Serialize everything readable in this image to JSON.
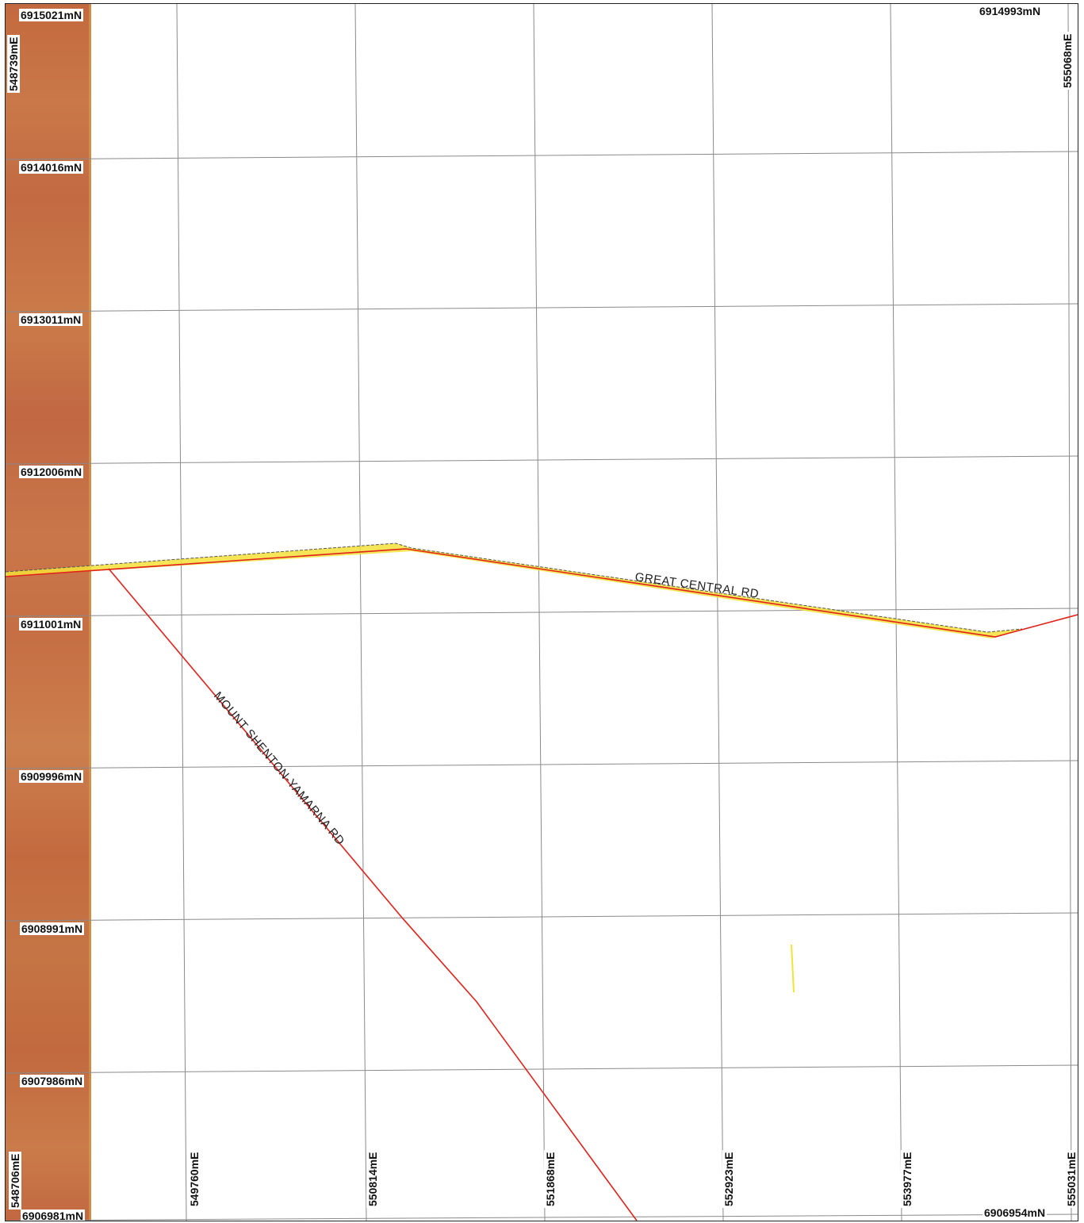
{
  "map": {
    "northing_labels": [
      "6915021mN",
      "6914016mN",
      "6913011mN",
      "6912006mN",
      "6911001mN",
      "6909996mN",
      "6908991mN",
      "6907986mN",
      "6906981mN"
    ],
    "easting_labels_bottom": [
      "548706mE",
      "549760mE",
      "550814mE",
      "551868mE",
      "552923mE",
      "553977mE",
      "555031mE"
    ],
    "corner_labels": {
      "top_left_easting": "548739mE",
      "top_right_northing": "6914993mN",
      "top_right_easting": "555068mE",
      "bottom_right_northing": "6906954mN"
    },
    "roads": [
      {
        "name": "GREAT CENTRAL RD",
        "color": "#e0221a",
        "fill": "#f4e13a"
      },
      {
        "name": "MOUNT SHENTON-YAMARNA RD",
        "color": "#e0221a"
      }
    ],
    "colors": {
      "grid": "#888888",
      "imagery": "#c6703f"
    }
  }
}
